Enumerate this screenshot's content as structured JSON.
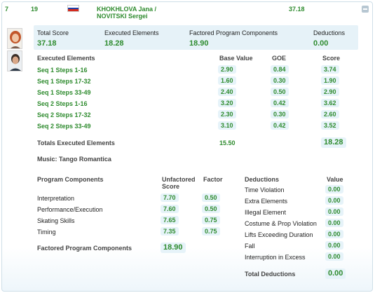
{
  "header": {
    "rank": "7",
    "start_number": "19",
    "name_line1": "KHOKHLOVA Jana /",
    "name_line2": "NOVITSKI Sergei",
    "total": "37.18"
  },
  "summary": {
    "total_score_label": "Total Score",
    "total_score": "37.18",
    "executed_label": "Executed Elements",
    "executed": "18.28",
    "factored_label": "Factored Program Components",
    "factored": "18.90",
    "deductions_label": "Deductions",
    "deductions": "0.00"
  },
  "elements_table": {
    "title": "Executed Elements",
    "col_base": "Base Value",
    "col_goe": "GOE",
    "col_score": "Score",
    "rows": [
      {
        "name": "Seq 1 Steps 1-16",
        "base": "2.90",
        "goe": "0.84",
        "score": "3.74"
      },
      {
        "name": "Seq 1 Steps 17-32",
        "base": "1.60",
        "goe": "0.30",
        "score": "1.90"
      },
      {
        "name": "Seq 1 Steps 33-49",
        "base": "2.40",
        "goe": "0.50",
        "score": "2.90"
      },
      {
        "name": "Seq 2 Steps 1-16",
        "base": "3.20",
        "goe": "0.42",
        "score": "3.62"
      },
      {
        "name": "Seq 2 Steps 17-32",
        "base": "2.30",
        "goe": "0.30",
        "score": "2.60"
      },
      {
        "name": "Seq 2 Steps 33-49",
        "base": "3.10",
        "goe": "0.42",
        "score": "3.52"
      }
    ],
    "totals_label": "Totals Executed Elements",
    "totals_base": "15.50",
    "totals_score": "18.28"
  },
  "music": "Music: Tango Romantica",
  "components": {
    "title": "Program Components",
    "col_unfactored_line1": "Unfactored",
    "col_unfactored_line2": "Score",
    "col_factor": "Factor",
    "rows": [
      {
        "name": "Interpretation",
        "score": "7.70",
        "factor": "0.50"
      },
      {
        "name": "Performance/Execution",
        "score": "7.60",
        "factor": "0.50"
      },
      {
        "name": "Skating Skills",
        "score": "7.65",
        "factor": "0.75"
      },
      {
        "name": "Timing",
        "score": "7.35",
        "factor": "0.75"
      }
    ],
    "total_label": "Factored Program Components",
    "total": "18.90"
  },
  "deductions": {
    "title": "Deductions",
    "col_value": "Value",
    "rows": [
      {
        "name": "Time Violation",
        "value": "0.00"
      },
      {
        "name": "Extra Elements",
        "value": "0.00"
      },
      {
        "name": "Illegal Element",
        "value": "0.00"
      },
      {
        "name": "Costume & Prop Violation",
        "value": "0.00"
      },
      {
        "name": "Lifts Exceeding Duration",
        "value": "0.00"
      },
      {
        "name": "Fall",
        "value": "0.00"
      },
      {
        "name": "Interruption in Excess",
        "value": "0.00"
      }
    ],
    "total_label": "Total Deductions",
    "total": "0.00"
  },
  "colors": {
    "accent_green": "#2e8b2e",
    "pill_bg": "#e6f3f9",
    "flag": [
      "#ffffff",
      "#1c3fa8",
      "#d52b1e"
    ]
  },
  "icons": {
    "collapse": "minus-icon",
    "flag": "russia-flag-icon",
    "athletes": [
      "female-athlete-avatar",
      "male-athlete-avatar"
    ]
  }
}
